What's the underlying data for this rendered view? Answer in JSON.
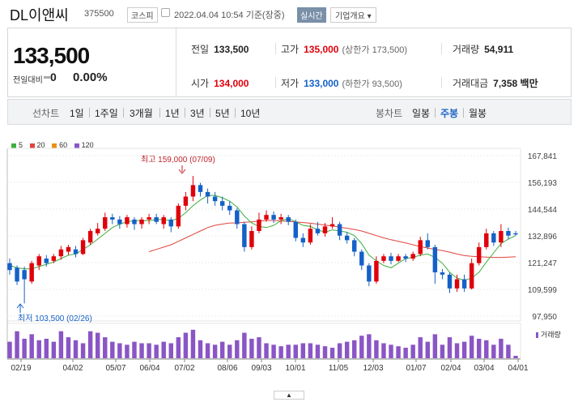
{
  "header": {
    "stock_name": "DL이앤씨",
    "stock_code": "375500",
    "market_badge": "코스피",
    "datetime": "2022.04.04 10:54 기준(장중)",
    "realtime_badge": "실시간",
    "company_info_label": "기업개요 ▾"
  },
  "quote": {
    "current_price": "133,500",
    "change_label": "전일대비",
    "change_value": "0",
    "change_pct": "0.00%",
    "prev_close_label": "전일",
    "prev_close": "133,500",
    "high_label": "고가",
    "high": "135,000",
    "upper_limit": "(상한가 173,500)",
    "volume_label": "거래량",
    "volume": "54,911",
    "open_label": "시가",
    "open": "134,000",
    "low_label": "저가",
    "low": "133,000",
    "lower_limit": "(하한가 93,500)",
    "amount_label": "거래대금",
    "amount": "7,358 백만"
  },
  "period_bar": {
    "line_label": "선차트",
    "line_periods": [
      "1일",
      "1주일",
      "3개월",
      "1년",
      "3년",
      "5년",
      "10년"
    ],
    "candle_label": "봉차트",
    "candle_periods": [
      "일봉",
      "주봉",
      "월봉"
    ],
    "selected_candle": "주봉"
  },
  "colors": {
    "up": "#e0000b",
    "down": "#1461c7",
    "ma5": "#3fae3f",
    "ma20": "#e0443c",
    "ma60": "#e8901b",
    "ma120": "#8a55c5",
    "volume": "#8a55c5"
  },
  "chart_data": {
    "type": "candlestick",
    "legend": [
      "5",
      "20",
      "60",
      "120"
    ],
    "y_ticks": [
      "167,841",
      "156,193",
      "144,544",
      "132,896",
      "121,247",
      "109,599",
      "97,950"
    ],
    "x_ticks": [
      "02/19",
      "04/02",
      "05/07",
      "06/04",
      "07/02",
      "08/06",
      "09/03",
      "10/01",
      "11/05",
      "12/03",
      "01/07",
      "02/04",
      "03/04",
      "04/01"
    ],
    "high_annotation": "최고 159,000 (07/09)",
    "low_annotation": "최저 103,500 (02/26)",
    "volume_label": "거래량",
    "ylim": [
      97950,
      167841
    ],
    "candles": [
      [
        121000,
        118000,
        123000,
        116000
      ],
      [
        119000,
        113000,
        120000,
        111500
      ],
      [
        118000,
        114000,
        119500,
        103500
      ],
      [
        113000,
        121000,
        122000,
        112000
      ],
      [
        120000,
        124000,
        125000,
        118000
      ],
      [
        123000,
        121000,
        124500,
        119500
      ],
      [
        122000,
        124000,
        125000,
        121000
      ],
      [
        124000,
        127000,
        128500,
        122500
      ],
      [
        126000,
        128000,
        129000,
        124500
      ],
      [
        127000,
        125000,
        128500,
        123500
      ],
      [
        125000,
        131000,
        132000,
        124500
      ],
      [
        130000,
        135000,
        136000,
        129000
      ],
      [
        134000,
        136000,
        138500,
        133000
      ],
      [
        136000,
        141000,
        143000,
        135000
      ],
      [
        141000,
        140000,
        142500,
        138000
      ],
      [
        140000,
        138000,
        141500,
        136000
      ],
      [
        138000,
        141000,
        142000,
        136500
      ],
      [
        140000,
        138000,
        141000,
        135500
      ],
      [
        138000,
        140000,
        141000,
        136000
      ],
      [
        140000,
        141000,
        142500,
        138000
      ],
      [
        141000,
        139000,
        142500,
        138000
      ],
      [
        138000,
        141000,
        142000,
        136000
      ],
      [
        140000,
        137000,
        141000,
        134500
      ],
      [
        137000,
        146000,
        147000,
        136000
      ],
      [
        146000,
        150000,
        152000,
        144000
      ],
      [
        150000,
        155000,
        159000,
        148000
      ],
      [
        155000,
        152000,
        156000,
        150000
      ],
      [
        152000,
        150000,
        153500,
        147000
      ],
      [
        150000,
        148000,
        152000,
        146000
      ],
      [
        148000,
        146000,
        150000,
        144000
      ],
      [
        146000,
        144000,
        148000,
        142000
      ],
      [
        144000,
        138000,
        145000,
        136000
      ],
      [
        138000,
        128000,
        139000,
        126000
      ],
      [
        128000,
        135000,
        137000,
        127000
      ],
      [
        135000,
        140000,
        143000,
        134000
      ],
      [
        140000,
        142000,
        144000,
        139000
      ],
      [
        142000,
        140000,
        143500,
        138500
      ],
      [
        140000,
        141000,
        142500,
        138000
      ],
      [
        141000,
        139000,
        142000,
        137500
      ],
      [
        139000,
        132000,
        140000,
        130500
      ],
      [
        132000,
        130000,
        134000,
        128000
      ],
      [
        130000,
        136000,
        138000,
        129000
      ],
      [
        136000,
        134000,
        139000,
        133000
      ],
      [
        134000,
        137000,
        138500,
        132500
      ],
      [
        137000,
        138000,
        141000,
        136000
      ],
      [
        138000,
        133000,
        139000,
        131000
      ],
      [
        133000,
        131000,
        134500,
        129500
      ],
      [
        131000,
        126000,
        132000,
        124000
      ],
      [
        126000,
        120000,
        127000,
        118000
      ],
      [
        120000,
        113000,
        121000,
        111000
      ],
      [
        113000,
        122000,
        124000,
        112000
      ],
      [
        122000,
        124000,
        125000,
        121000
      ],
      [
        124000,
        122000,
        125500,
        120500
      ],
      [
        122000,
        124000,
        125000,
        121500
      ],
      [
        124000,
        123000,
        125000,
        121500
      ],
      [
        123000,
        125000,
        126000,
        122000
      ],
      [
        125000,
        131000,
        132500,
        124000
      ],
      [
        131000,
        128000,
        134000,
        127000
      ],
      [
        128000,
        117000,
        129000,
        112000
      ],
      [
        117000,
        116000,
        118500,
        114000
      ],
      [
        116000,
        110000,
        117000,
        108000
      ],
      [
        110000,
        114000,
        116000,
        108500
      ],
      [
        114000,
        110000,
        116000,
        108500
      ],
      [
        110000,
        121000,
        123000,
        109500
      ],
      [
        121000,
        128000,
        130000,
        120000
      ],
      [
        128000,
        134000,
        136000,
        127000
      ],
      [
        134000,
        130000,
        135000,
        128500
      ],
      [
        130000,
        135000,
        138000,
        128000
      ],
      [
        135000,
        133000,
        136500,
        131500
      ],
      [
        134000,
        133500,
        135000,
        133000
      ]
    ],
    "ma5": [
      120000,
      119000,
      118500,
      118500,
      119500,
      120500,
      121500,
      123000,
      124500,
      125000,
      127000,
      129000,
      131500,
      134000,
      136500,
      138000,
      139000,
      139500,
      139500,
      139500,
      140000,
      140000,
      139500,
      140500,
      143000,
      146000,
      148500,
      150500,
      150500,
      149500,
      148000,
      145500,
      141500,
      138500,
      137000,
      136500,
      137500,
      139500,
      140500,
      139000,
      137500,
      137000,
      135500,
      134500,
      135500,
      135000,
      134500,
      133000,
      129500,
      124500,
      122000,
      120000,
      119000,
      121000,
      123000,
      123500,
      124500,
      125000,
      123500,
      121000,
      117000,
      114500,
      113500,
      114500,
      117000,
      121500,
      125500,
      129500,
      131500,
      133000
    ],
    "ma20": [
      null,
      null,
      null,
      null,
      null,
      null,
      null,
      null,
      null,
      null,
      null,
      null,
      null,
      null,
      null,
      null,
      null,
      null,
      null,
      126000,
      127000,
      128000,
      129000,
      130500,
      132000,
      133500,
      135000,
      136500,
      137500,
      138000,
      138500,
      138500,
      138800,
      139000,
      139300,
      139600,
      139600,
      139400,
      139200,
      139000,
      138700,
      138400,
      138000,
      137600,
      137200,
      136700,
      136200,
      135700,
      135000,
      134000,
      133000,
      132000,
      131200,
      130500,
      129800,
      129000,
      128200,
      127600,
      127000,
      126500,
      125800,
      125000,
      124300,
      124000,
      123800,
      123600,
      123500,
      123500,
      123600,
      123800
    ],
    "volume": [
      0.55,
      0.9,
      0.65,
      0.8,
      0.6,
      0.65,
      0.55,
      0.9,
      0.7,
      0.6,
      0.5,
      0.9,
      0.85,
      0.7,
      0.55,
      0.5,
      0.45,
      0.55,
      0.5,
      0.5,
      0.45,
      0.55,
      0.5,
      0.7,
      0.85,
      0.95,
      0.6,
      0.5,
      0.45,
      0.55,
      0.45,
      0.6,
      0.85,
      0.65,
      0.7,
      0.5,
      0.45,
      0.4,
      0.45,
      0.45,
      0.5,
      0.5,
      0.45,
      0.4,
      0.35,
      0.5,
      0.55,
      0.6,
      0.75,
      0.8,
      0.6,
      0.5,
      0.45,
      0.4,
      0.35,
      0.45,
      0.7,
      0.55,
      0.8,
      0.45,
      0.7,
      0.5,
      0.55,
      0.75,
      0.65,
      0.6,
      0.45,
      0.65,
      0.45,
      0.08
    ]
  }
}
